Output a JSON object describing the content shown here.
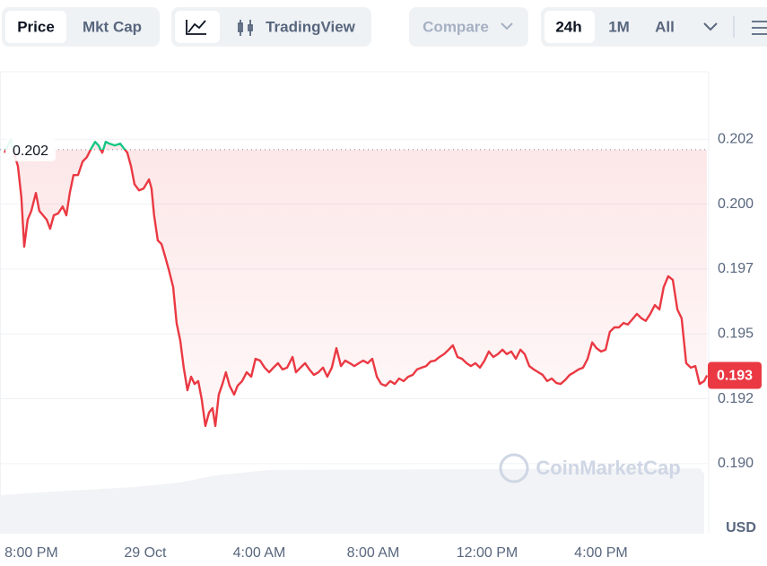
{
  "toolbar": {
    "price": "Price",
    "mkt_cap": "Mkt Cap",
    "tradingview": "TradingView",
    "compare": "Compare",
    "ranges": [
      "24h",
      "1M",
      "All"
    ]
  },
  "chart_data": {
    "type": "line",
    "y_unit": "USD",
    "watermark": "CoinMarketCap",
    "open": {
      "value": 0.2021,
      "label": "0.202"
    },
    "last_value_label": "0.193",
    "up_color": "#16c784",
    "down_color": "#ea3943",
    "xlim": [
      -1.1,
      23.78
    ],
    "ylim": [
      0.1873,
      0.2051
    ],
    "xticks": [
      {
        "value": 0,
        "label": "8:00 PM"
      },
      {
        "value": 4,
        "label": "29 Oct"
      },
      {
        "value": 8,
        "label": "4:00 AM"
      },
      {
        "value": 12,
        "label": "8:00 AM"
      },
      {
        "value": 16,
        "label": "12:00 PM"
      },
      {
        "value": 20,
        "label": "4:00 PM"
      }
    ],
    "yticks": [
      {
        "value": 0.2025,
        "label": "0.202"
      },
      {
        "value": 0.2,
        "label": "0.200"
      },
      {
        "value": 0.1975,
        "label": "0.197"
      },
      0.195,
      {
        "value": 0.1925,
        "label": "0.192"
      },
      {
        "value": 0.19,
        "label": "0.190"
      }
    ],
    "grid": true,
    "x": [
      -0.94,
      -0.72,
      -0.63,
      -0.47,
      -0.35,
      -0.25,
      -0.13,
      0,
      0.16,
      0.28,
      0.41,
      0.54,
      0.66,
      0.79,
      0.94,
      1.1,
      1.23,
      1.35,
      1.48,
      1.64,
      1.8,
      1.95,
      2.11,
      2.24,
      2.36,
      2.49,
      2.61,
      2.74,
      2.93,
      3.12,
      3.24,
      3.37,
      3.5,
      3.62,
      3.78,
      3.94,
      4.13,
      4.22,
      4.31,
      4.44,
      4.57,
      4.69,
      4.82,
      4.98,
      5.1,
      5.23,
      5.35,
      5.48,
      5.61,
      5.73,
      5.86,
      5.98,
      6.11,
      6.24,
      6.36,
      6.46,
      6.58,
      6.71,
      6.83,
      6.96,
      7.12,
      7.24,
      7.4,
      7.56,
      7.72,
      7.87,
      8.03,
      8.19,
      8.35,
      8.5,
      8.66,
      8.82,
      8.98,
      9.17,
      9.29,
      9.45,
      9.61,
      9.76,
      9.92,
      10.08,
      10.24,
      10.39,
      10.55,
      10.71,
      10.87,
      11.02,
      11.18,
      11.34,
      11.5,
      11.65,
      11.81,
      11.97,
      12.13,
      12.28,
      12.44,
      12.6,
      12.76,
      12.91,
      13.07,
      13.23,
      13.39,
      13.54,
      13.7,
      13.86,
      14.02,
      14.17,
      14.33,
      14.49,
      14.65,
      14.8,
      14.96,
      15.12,
      15.28,
      15.43,
      15.59,
      15.75,
      15.91,
      16.06,
      16.22,
      16.38,
      16.54,
      16.69,
      16.85,
      17.01,
      17.17,
      17.32,
      17.48,
      17.64,
      17.8,
      17.95,
      18.11,
      18.27,
      18.43,
      18.58,
      18.74,
      18.9,
      19.06,
      19.21,
      19.37,
      19.53,
      19.69,
      19.84,
      20,
      20.16,
      20.31,
      20.47,
      20.63,
      20.79,
      20.94,
      21.1,
      21.26,
      21.42,
      21.57,
      21.73,
      21.89,
      22.05,
      22.2,
      22.36,
      22.52,
      22.68,
      22.83,
      22.99,
      23.15,
      23.31,
      23.46,
      23.62,
      23.72
    ],
    "series": [
      {
        "name": "Price",
        "values": [
          0.20198,
          0.2025,
          0.20205,
          0.20146,
          0.20026,
          0.19836,
          0.1994,
          0.19974,
          0.20043,
          0.19974,
          0.19957,
          0.1994,
          0.19905,
          0.19957,
          0.19964,
          0.19991,
          0.19957,
          0.20043,
          0.20112,
          0.20112,
          0.20164,
          0.20181,
          0.20216,
          0.2024,
          0.20226,
          0.20198,
          0.2024,
          0.20233,
          0.20226,
          0.20233,
          0.20216,
          0.20198,
          0.20146,
          0.20077,
          0.20053,
          0.2006,
          0.20095,
          0.2006,
          0.19957,
          0.1986,
          0.19846,
          0.19801,
          0.1975,
          0.1968,
          0.19542,
          0.19473,
          0.1937,
          0.19283,
          0.19335,
          0.19307,
          0.19318,
          0.19249,
          0.19145,
          0.19197,
          0.19214,
          0.19145,
          0.19266,
          0.19307,
          0.19352,
          0.193,
          0.19266,
          0.193,
          0.19318,
          0.19352,
          0.19335,
          0.19404,
          0.19397,
          0.1937,
          0.19352,
          0.1937,
          0.19387,
          0.19363,
          0.1937,
          0.19411,
          0.19352,
          0.1937,
          0.19387,
          0.19363,
          0.19342,
          0.19352,
          0.1937,
          0.19335,
          0.1937,
          0.19445,
          0.19376,
          0.19397,
          0.19387,
          0.19376,
          0.19387,
          0.19397,
          0.19387,
          0.19404,
          0.19335,
          0.19307,
          0.193,
          0.19318,
          0.19307,
          0.19328,
          0.19318,
          0.19335,
          0.19342,
          0.19363,
          0.1937,
          0.19376,
          0.19394,
          0.19397,
          0.19411,
          0.19422,
          0.19439,
          0.19456,
          0.19411,
          0.19404,
          0.19387,
          0.19376,
          0.19387,
          0.1937,
          0.19397,
          0.19432,
          0.19411,
          0.19422,
          0.19439,
          0.19422,
          0.19432,
          0.19404,
          0.19439,
          0.19422,
          0.19376,
          0.19363,
          0.19352,
          0.19342,
          0.19318,
          0.19328,
          0.19311,
          0.19307,
          0.19322,
          0.19342,
          0.19352,
          0.19363,
          0.1937,
          0.19404,
          0.19467,
          0.19445,
          0.19432,
          0.19439,
          0.19508,
          0.19525,
          0.19525,
          0.19542,
          0.19536,
          0.19556,
          0.19577,
          0.1956,
          0.1955,
          0.19577,
          0.19611,
          0.19594,
          0.1968,
          0.19722,
          0.19708,
          0.19594,
          0.1956,
          0.19387,
          0.1937,
          0.19376,
          0.19307,
          0.19318,
          0.1934
        ]
      }
    ]
  }
}
